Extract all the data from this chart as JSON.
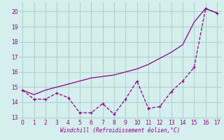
{
  "xlabel": "Windchill (Refroidissement éolien,°C)",
  "background_color": "#d5efee",
  "grid_color": "#b0d0ce",
  "line_color": "#880088",
  "x_smooth": [
    0,
    1,
    2,
    3,
    4,
    5,
    6,
    7,
    8,
    9,
    10,
    11,
    12,
    13,
    14,
    15,
    16,
    17
  ],
  "y_smooth": [
    14.8,
    14.5,
    14.8,
    15.0,
    15.2,
    15.4,
    15.6,
    15.7,
    15.8,
    16.0,
    16.2,
    16.5,
    16.9,
    17.3,
    17.8,
    19.3,
    20.2,
    19.9
  ],
  "x_line": [
    0,
    1,
    2,
    3,
    4,
    5,
    6,
    7,
    8,
    9,
    10,
    11,
    12,
    13,
    14,
    15,
    16,
    17
  ],
  "y_line": [
    14.8,
    14.2,
    14.2,
    14.6,
    14.3,
    13.3,
    13.3,
    13.9,
    13.2,
    14.2,
    15.4,
    13.6,
    13.7,
    14.7,
    15.4,
    16.3,
    20.2,
    19.9
  ],
  "xlim": [
    -0.3,
    17.4
  ],
  "ylim": [
    12.9,
    20.6
  ],
  "yticks": [
    13,
    14,
    15,
    16,
    17,
    18,
    19,
    20
  ],
  "xticks": [
    0,
    1,
    2,
    3,
    4,
    5,
    6,
    7,
    8,
    9,
    10,
    11,
    12,
    13,
    14,
    15,
    16,
    17
  ]
}
